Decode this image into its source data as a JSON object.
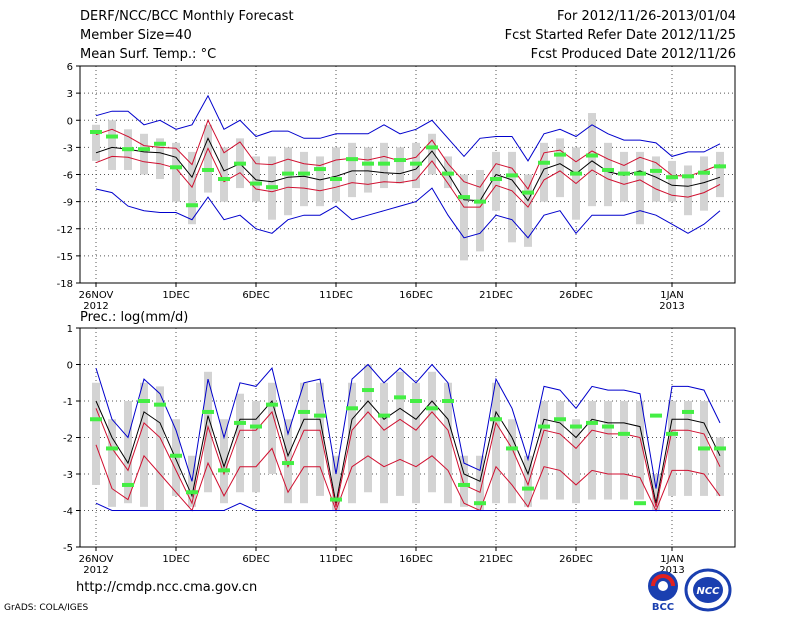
{
  "header": {
    "left": [
      "DERF/NCC/BCC Monthly Forecast",
      "Member Size=40",
      "Mean Surf. Temp.: °C"
    ],
    "right": [
      "For 2012/11/26-2013/01/04",
      "Fcst Started Refer Date 2012/11/25",
      "Fcst Produced Date 2012/11/26"
    ]
  },
  "footer": {
    "url": "http://cmdp.ncc.cma.gov.cn",
    "credit": "GrADS: COLA/IGES",
    "logo_bcc": "BCC",
    "logo_ncc": "NCC"
  },
  "colors": {
    "mean": "#000000",
    "inner": "#d01030",
    "outer": "#0000cc",
    "box": "#d3d3d3",
    "obs": "#44ee44",
    "grid": "#555555"
  },
  "x_ticks": [
    {
      "day": 0,
      "label": "26NOV",
      "sub": "2012"
    },
    {
      "day": 5,
      "label": "1DEC",
      "sub": ""
    },
    {
      "day": 10,
      "label": "6DEC",
      "sub": ""
    },
    {
      "day": 15,
      "label": "11DEC",
      "sub": ""
    },
    {
      "day": 20,
      "label": "16DEC",
      "sub": ""
    },
    {
      "day": 25,
      "label": "21DEC",
      "sub": ""
    },
    {
      "day": 30,
      "label": "26DEC",
      "sub": ""
    },
    {
      "day": 36,
      "label": "1JAN",
      "sub": "2013"
    }
  ],
  "chart_data": [
    {
      "type": "line",
      "title": "Mean Surf. Temp.: °C",
      "ylim": [
        -18,
        6
      ],
      "yticks": [
        6,
        3,
        0,
        -3,
        -6,
        -9,
        -12,
        -15,
        -18
      ],
      "x": [
        0,
        1,
        2,
        3,
        4,
        5,
        6,
        7,
        8,
        9,
        10,
        11,
        12,
        13,
        14,
        15,
        16,
        17,
        18,
        19,
        20,
        21,
        22,
        23,
        24,
        25,
        26,
        27,
        28,
        29,
        30,
        31,
        32,
        33,
        34,
        35,
        36,
        37,
        38,
        39
      ],
      "series": [
        {
          "name": "ensemble-mean",
          "values": [
            -3.6,
            -3.0,
            -3.2,
            -3.5,
            -3.6,
            -4.1,
            -6.3,
            -2.0,
            -5.6,
            -4.8,
            -6.6,
            -6.8,
            -6.3,
            -6.2,
            -6.6,
            -6.2,
            -5.6,
            -5.6,
            -5.8,
            -5.9,
            -5.4,
            -3.4,
            -5.9,
            -8.8,
            -8.9,
            -6.0,
            -6.6,
            -8.9,
            -5.4,
            -4.8,
            -5.9,
            -4.5,
            -5.7,
            -6.1,
            -5.6,
            -6.3,
            -7.2,
            -7.3,
            -6.9,
            -6.3
          ]
        },
        {
          "name": "upper-inner",
          "values": [
            -1.6,
            -1.0,
            -1.8,
            -2.8,
            -3.0,
            -3.1,
            -4.9,
            0.0,
            -3.6,
            -2.4,
            -4.8,
            -4.9,
            -4.3,
            -4.8,
            -5.0,
            -4.4,
            -4.2,
            -4.4,
            -4.0,
            -4.5,
            -4.1,
            -2.2,
            -4.8,
            -6.8,
            -7.4,
            -4.8,
            -5.3,
            -7.6,
            -3.6,
            -3.3,
            -4.6,
            -3.4,
            -4.3,
            -5.0,
            -4.1,
            -4.7,
            -6.1,
            -6.2,
            -5.6,
            -4.9
          ]
        },
        {
          "name": "lower-inner",
          "values": [
            -4.7,
            -4.0,
            -4.1,
            -4.6,
            -4.8,
            -5.3,
            -7.4,
            -3.1,
            -6.8,
            -5.8,
            -7.6,
            -7.9,
            -7.4,
            -7.5,
            -7.8,
            -7.4,
            -6.9,
            -7.1,
            -6.8,
            -6.9,
            -6.6,
            -4.5,
            -7.0,
            -9.6,
            -9.6,
            -7.2,
            -7.8,
            -9.6,
            -6.6,
            -5.6,
            -7.0,
            -5.5,
            -6.5,
            -7.1,
            -6.6,
            -7.6,
            -8.3,
            -8.5,
            -8.0,
            -7.1
          ]
        },
        {
          "name": "upper-outer",
          "values": [
            0.5,
            1.0,
            1.0,
            -0.5,
            0.0,
            -1.0,
            -0.5,
            2.7,
            -1.0,
            0.0,
            -1.8,
            -1.2,
            -1.2,
            -2.0,
            -2.0,
            -1.5,
            -1.5,
            -1.5,
            -0.5,
            -1.5,
            -1.0,
            0.0,
            -2.0,
            -4.0,
            -2.0,
            -1.8,
            -1.8,
            -4.5,
            -1.5,
            -1.0,
            -1.8,
            -0.5,
            -1.5,
            -2.2,
            -2.2,
            -2.5,
            -4.0,
            -3.5,
            -3.5,
            -2.6
          ]
        },
        {
          "name": "lower-outer",
          "values": [
            -7.6,
            -8.0,
            -9.5,
            -10.0,
            -10.2,
            -10.2,
            -11.0,
            -8.5,
            -11.0,
            -10.5,
            -12.0,
            -12.5,
            -11.0,
            -10.5,
            -10.5,
            -9.5,
            -11.0,
            -10.5,
            -10.0,
            -9.5,
            -9.0,
            -7.5,
            -10.5,
            -13.0,
            -12.5,
            -10.5,
            -11.0,
            -13.0,
            -10.5,
            -10.0,
            -12.5,
            -10.5,
            -10.5,
            -10.5,
            -10.0,
            -10.5,
            -11.5,
            -12.5,
            -11.5,
            -10.0
          ]
        },
        {
          "name": "observed",
          "values": [
            -1.3,
            -1.8,
            -3.2,
            -3.2,
            -2.6,
            -5.2,
            -9.4,
            -5.5,
            -6.5,
            -4.8,
            -7.0,
            -7.4,
            -5.9,
            -5.9,
            -5.4,
            -6.5,
            -4.3,
            -4.8,
            -4.8,
            -4.4,
            -4.8,
            -3.0,
            -5.9,
            -8.5,
            -9.0,
            -6.5,
            -6.1,
            -8.0,
            -4.7,
            -3.8,
            -5.9,
            -3.9,
            -5.5,
            -5.9,
            -5.9,
            -5.6,
            -6.3,
            -6.2,
            -5.8,
            -5.1
          ]
        }
      ],
      "box_top": [
        -0.5,
        0.0,
        -1.0,
        -1.5,
        -2.0,
        -2.5,
        -3.5,
        -0.5,
        -3.0,
        -2.0,
        -4.0,
        -4.0,
        -3.0,
        -3.5,
        -4.0,
        -3.0,
        -2.5,
        -3.0,
        -2.5,
        -3.0,
        -2.5,
        -1.5,
        -4.0,
        -6.0,
        -5.5,
        -3.5,
        -3.5,
        -6.0,
        -2.5,
        -2.0,
        -3.0,
        0.8,
        -2.5,
        -3.5,
        -3.5,
        -4.0,
        -4.5,
        -5.0,
        -4.0,
        -3.5
      ],
      "box_bottom": [
        -4.5,
        -5.5,
        -5.5,
        -6.0,
        -6.5,
        -9.0,
        -11.5,
        -8.0,
        -9.0,
        -7.5,
        -9.0,
        -11.0,
        -10.5,
        -9.5,
        -9.5,
        -9.0,
        -8.5,
        -8.0,
        -7.5,
        -7.0,
        -7.5,
        -6.0,
        -7.5,
        -15.5,
        -14.5,
        -10.0,
        -13.5,
        -14.0,
        -9.0,
        -8.5,
        -11.0,
        -9.5,
        -9.5,
        -9.0,
        -11.5,
        -9.0,
        -9.0,
        -10.5,
        -10.0,
        -8.5
      ]
    },
    {
      "type": "line",
      "title": "Prec.: log(mm/d)",
      "ylim": [
        -5,
        1
      ],
      "yticks": [
        1,
        0,
        -1,
        -2,
        -3,
        -4,
        -5
      ],
      "x": [
        0,
        1,
        2,
        3,
        4,
        5,
        6,
        7,
        8,
        9,
        10,
        11,
        12,
        13,
        14,
        15,
        16,
        17,
        18,
        19,
        20,
        21,
        22,
        23,
        24,
        25,
        26,
        27,
        28,
        29,
        30,
        31,
        32,
        33,
        34,
        35,
        36,
        37,
        38,
        39
      ],
      "series": [
        {
          "name": "ensemble-mean",
          "values": [
            -1.0,
            -2.0,
            -2.7,
            -1.3,
            -1.6,
            -2.6,
            -3.6,
            -1.4,
            -2.8,
            -1.5,
            -1.5,
            -1.0,
            -2.5,
            -1.5,
            -1.5,
            -3.8,
            -1.5,
            -1.0,
            -1.5,
            -1.2,
            -1.5,
            -1.0,
            -1.5,
            -3.0,
            -3.2,
            -1.3,
            -2.0,
            -3.0,
            -1.5,
            -1.6,
            -2.0,
            -1.5,
            -1.6,
            -1.6,
            -1.7,
            -3.8,
            -1.5,
            -1.5,
            -1.6,
            -2.5
          ]
        },
        {
          "name": "upper-inner",
          "values": [
            -1.2,
            -2.3,
            -2.9,
            -1.6,
            -2.0,
            -2.9,
            -3.8,
            -1.7,
            -3.0,
            -1.8,
            -1.8,
            -1.3,
            -2.8,
            -1.8,
            -1.8,
            -3.9,
            -1.8,
            -1.3,
            -1.8,
            -1.5,
            -1.8,
            -1.3,
            -1.8,
            -3.3,
            -3.5,
            -1.6,
            -2.3,
            -3.3,
            -1.8,
            -1.9,
            -2.3,
            -1.8,
            -1.9,
            -1.9,
            -2.0,
            -3.9,
            -1.8,
            -1.8,
            -1.9,
            -2.8
          ]
        },
        {
          "name": "lower-inner",
          "values": [
            -2.2,
            -3.4,
            -3.7,
            -2.5,
            -3.0,
            -3.5,
            -4.0,
            -2.7,
            -3.6,
            -2.8,
            -2.8,
            -2.3,
            -3.5,
            -2.8,
            -2.8,
            -4.0,
            -2.8,
            -2.5,
            -2.8,
            -2.6,
            -2.8,
            -2.5,
            -2.9,
            -3.8,
            -4.0,
            -2.8,
            -3.3,
            -3.9,
            -2.8,
            -2.9,
            -3.3,
            -2.9,
            -3.0,
            -3.0,
            -3.1,
            -4.0,
            -2.9,
            -2.9,
            -3.0,
            -3.6
          ]
        },
        {
          "name": "upper-outer",
          "values": [
            -0.1,
            -1.5,
            -2.0,
            -0.4,
            -0.8,
            -1.8,
            -3.2,
            -0.4,
            -2.0,
            -0.5,
            -0.6,
            -0.1,
            -1.9,
            -0.5,
            -0.4,
            -3.0,
            -0.4,
            0.0,
            -0.5,
            -0.1,
            -0.5,
            0.0,
            -0.5,
            -2.7,
            -2.9,
            -0.4,
            -1.2,
            -2.6,
            -0.6,
            -0.7,
            -1.2,
            -0.6,
            -0.7,
            -0.7,
            -0.8,
            -3.4,
            -0.6,
            -0.6,
            -0.7,
            -1.6
          ]
        },
        {
          "name": "lower-outer",
          "values": [
            -3.8,
            -4.0,
            -4.0,
            -4.0,
            -4.0,
            -4.0,
            -4.0,
            -4.0,
            -4.0,
            -3.8,
            -4.0,
            -4.0,
            -4.0,
            -4.0,
            -4.0,
            -4.0,
            -4.0,
            -4.0,
            -4.0,
            -4.0,
            -4.0,
            -4.0,
            -4.0,
            -4.0,
            -4.0,
            -4.0,
            -4.0,
            -4.0,
            -4.0,
            -4.0,
            -4.0,
            -4.0,
            -4.0,
            -4.0,
            -4.0,
            -4.0,
            -4.0,
            -4.0,
            -4.0,
            -4.0
          ]
        },
        {
          "name": "observed",
          "values": [
            -1.5,
            -2.3,
            -3.3,
            -1.0,
            -1.1,
            -2.5,
            -3.5,
            -1.3,
            -2.9,
            -1.6,
            -1.7,
            -1.1,
            -2.7,
            -1.3,
            -1.4,
            -3.7,
            -1.2,
            -0.7,
            -1.4,
            -0.9,
            -1.0,
            -1.2,
            -1.0,
            -3.3,
            -3.8,
            -1.5,
            -2.3,
            -3.4,
            -1.7,
            -1.5,
            -1.7,
            -1.6,
            -1.7,
            -1.9,
            -3.8,
            -1.4,
            -1.9,
            -1.3,
            -2.3,
            -2.3
          ]
        }
      ],
      "box_top": [
        -0.5,
        -1.5,
        -1.0,
        -0.5,
        -0.6,
        -1.5,
        -2.5,
        -0.2,
        -1.5,
        -0.8,
        -1.0,
        -0.5,
        -1.5,
        -0.5,
        -0.5,
        -2.5,
        -0.5,
        0.0,
        -0.5,
        -0.2,
        -0.5,
        -0.2,
        -0.5,
        -2.5,
        -2.5,
        -0.5,
        -1.5,
        -2.5,
        -1.0,
        -1.0,
        -1.5,
        -1.0,
        -1.0,
        -1.0,
        -1.0,
        -3.0,
        -1.0,
        -1.0,
        -1.0,
        -2.0
      ],
      "box_bottom": [
        -3.3,
        -3.9,
        -3.8,
        -3.9,
        -4.0,
        -3.6,
        -3.9,
        -3.5,
        -3.8,
        -3.5,
        -3.5,
        -3.0,
        -3.8,
        -3.8,
        -3.6,
        -4.0,
        -3.8,
        -3.5,
        -3.8,
        -3.6,
        -3.8,
        -3.5,
        -3.8,
        -3.9,
        -4.0,
        -3.8,
        -3.8,
        -3.9,
        -3.7,
        -3.7,
        -3.8,
        -3.7,
        -3.7,
        -3.7,
        -3.7,
        -4.0,
        -3.6,
        -3.6,
        -3.6,
        -3.6
      ]
    }
  ]
}
